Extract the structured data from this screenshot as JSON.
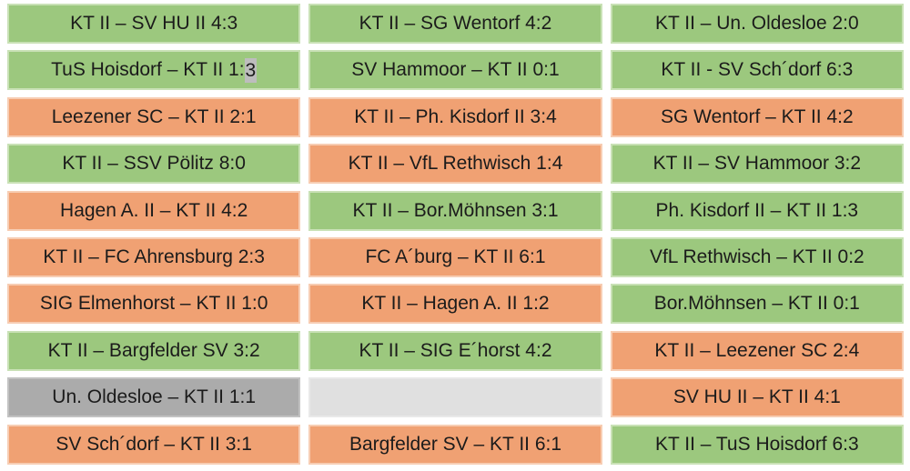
{
  "colors": {
    "win_bg": "#9CC87E",
    "win_border": "#C9E1B6",
    "loss_bg": "#F0A173",
    "loss_border": "#F7CDB3",
    "draw_bg": "#ABABAB",
    "draw_border": "#C2C2C2",
    "empty_bg": "#E0E0E0",
    "empty_border": "#E9E9E9",
    "text": "#1B1B1B",
    "highlight_bg": "#BDBDBD"
  },
  "grid": {
    "rows": [
      {
        "cells": [
          {
            "text": "KT II – SV HU II 4:3",
            "result": "win"
          },
          {
            "text": "KT II – SG Wentorf 4:2",
            "result": "win"
          },
          {
            "text": "KT II – Un. Oldesloe 2:0",
            "result": "win"
          }
        ]
      },
      {
        "cells": [
          {
            "text": "TuS Hoisdorf – KT II 1:",
            "highlighted": "3",
            "result": "win"
          },
          {
            "text": "SV Hammoor – KT II 0:1",
            "result": "win"
          },
          {
            "text": "KT II - SV Sch´dorf 6:3",
            "result": "win"
          }
        ]
      },
      {
        "cells": [
          {
            "text": "Leezener SC – KT II 2:1",
            "result": "loss"
          },
          {
            "text": "KT II – Ph. Kisdorf II 3:4",
            "result": "loss"
          },
          {
            "text": "SG Wentorf – KT II 4:2",
            "result": "loss"
          }
        ]
      },
      {
        "cells": [
          {
            "text": "KT II – SSV Pölitz 8:0",
            "result": "win"
          },
          {
            "text": "KT II – VfL Rethwisch 1:4",
            "result": "loss"
          },
          {
            "text": "KT II – SV Hammoor 3:2",
            "result": "win"
          }
        ]
      },
      {
        "cells": [
          {
            "text": "Hagen A. II – KT II 4:2",
            "result": "loss"
          },
          {
            "text": "KT II – Bor.Möhnsen 3:1",
            "result": "win"
          },
          {
            "text": "Ph. Kisdorf II – KT II 1:3",
            "result": "win"
          }
        ]
      },
      {
        "cells": [
          {
            "text": "KT II – FC Ahrensburg 2:3",
            "result": "loss"
          },
          {
            "text": "FC A´burg – KT II 6:1",
            "result": "loss"
          },
          {
            "text": "VfL Rethwisch – KT II 0:2",
            "result": "win"
          }
        ]
      },
      {
        "cells": [
          {
            "text": "SIG Elmenhorst – KT II 1:0",
            "result": "loss"
          },
          {
            "text": "KT II – Hagen A. II 1:2",
            "result": "loss"
          },
          {
            "text": "Bor.Möhnsen – KT II 0:1",
            "result": "win"
          }
        ]
      },
      {
        "cells": [
          {
            "text": "KT II – Bargfelder SV 3:2",
            "result": "win"
          },
          {
            "text": "KT II – SIG E´horst 4:2",
            "result": "win"
          },
          {
            "text": "KT II – Leezener SC 2:4",
            "result": "loss"
          }
        ]
      },
      {
        "cells": [
          {
            "text": "Un. Oldesloe – KT II 1:1",
            "result": "draw"
          },
          {
            "text": "",
            "result": "empty"
          },
          {
            "text": "SV HU II – KT II 4:1",
            "result": "loss"
          }
        ]
      },
      {
        "cells": [
          {
            "text": "SV Sch´dorf – KT II 3:1",
            "result": "loss"
          },
          {
            "text": "Bargfelder SV – KT II 6:1",
            "result": "loss"
          },
          {
            "text": "KT II – TuS Hoisdorf 6:3",
            "result": "win"
          }
        ]
      }
    ]
  }
}
